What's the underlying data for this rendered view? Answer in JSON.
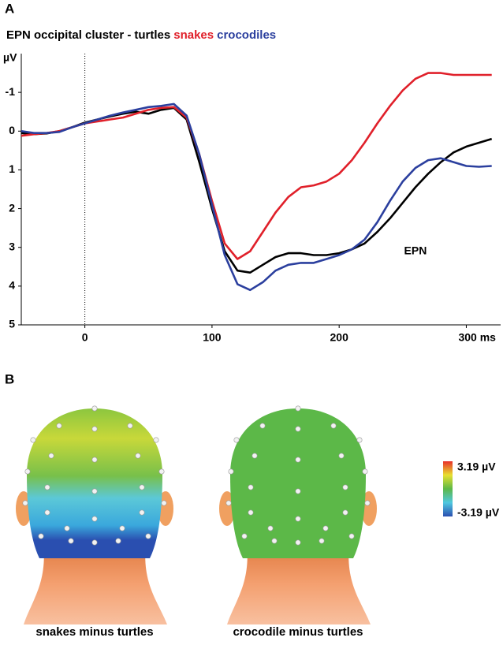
{
  "panel_labels": [
    "A",
    "B"
  ],
  "chart_data": {
    "type": "line",
    "title": "EPN occipital cluster -",
    "y_label": "µV",
    "annotation": {
      "text": "EPN",
      "x": 260,
      "y": 3.1
    },
    "vline_x": 0,
    "xlim": [
      -50,
      327
    ],
    "ylim": [
      -2,
      5
    ],
    "y_inverted": true,
    "xticks": [
      0,
      100,
      200,
      {
        "value": 300,
        "label": "300 ms"
      }
    ],
    "yticks": [
      -1,
      0,
      1,
      2,
      3,
      4,
      5
    ],
    "x": [
      -50,
      -40,
      -30,
      -20,
      -10,
      0,
      10,
      20,
      30,
      40,
      50,
      60,
      70,
      80,
      90,
      100,
      110,
      120,
      130,
      140,
      150,
      160,
      170,
      180,
      190,
      200,
      210,
      220,
      230,
      240,
      250,
      260,
      270,
      280,
      290,
      300,
      310,
      320
    ],
    "series": [
      {
        "name": "turtles",
        "color": "#000000",
        "values": [
          0.05,
          0.08,
          0.06,
          0.0,
          -0.1,
          -0.22,
          -0.3,
          -0.38,
          -0.45,
          -0.5,
          -0.45,
          -0.55,
          -0.6,
          -0.3,
          0.8,
          2.0,
          3.1,
          3.6,
          3.65,
          3.45,
          3.25,
          3.15,
          3.15,
          3.2,
          3.2,
          3.15,
          3.05,
          2.9,
          2.6,
          2.25,
          1.85,
          1.45,
          1.1,
          0.8,
          0.55,
          0.4,
          0.3,
          0.2
        ]
      },
      {
        "name": "snakes",
        "color": "#e0202a",
        "values": [
          0.12,
          0.08,
          0.05,
          0.0,
          -0.1,
          -0.2,
          -0.25,
          -0.3,
          -0.35,
          -0.45,
          -0.55,
          -0.6,
          -0.62,
          -0.35,
          0.6,
          1.8,
          2.9,
          3.3,
          3.1,
          2.6,
          2.1,
          1.7,
          1.45,
          1.4,
          1.3,
          1.1,
          0.75,
          0.3,
          -0.2,
          -0.65,
          -1.05,
          -1.35,
          -1.5,
          -1.5,
          -1.45,
          -1.45,
          -1.45,
          -1.45
        ]
      },
      {
        "name": "crocodiles",
        "color": "#2b3f9e",
        "values": [
          0.0,
          0.05,
          0.05,
          0.02,
          -0.1,
          -0.2,
          -0.3,
          -0.4,
          -0.48,
          -0.55,
          -0.62,
          -0.65,
          -0.7,
          -0.4,
          0.6,
          1.9,
          3.2,
          3.95,
          4.1,
          3.9,
          3.6,
          3.45,
          3.4,
          3.4,
          3.3,
          3.2,
          3.05,
          2.8,
          2.35,
          1.8,
          1.3,
          0.95,
          0.75,
          0.7,
          0.8,
          0.9,
          0.92,
          0.9
        ]
      }
    ]
  },
  "topomaps": {
    "maps": [
      {
        "label": "snakes minus turtles"
      },
      {
        "label": "crocodile minus turtles"
      }
    ],
    "colorbar": {
      "max_label": "3.19 µV",
      "min_label": "-3.19 µV"
    }
  }
}
